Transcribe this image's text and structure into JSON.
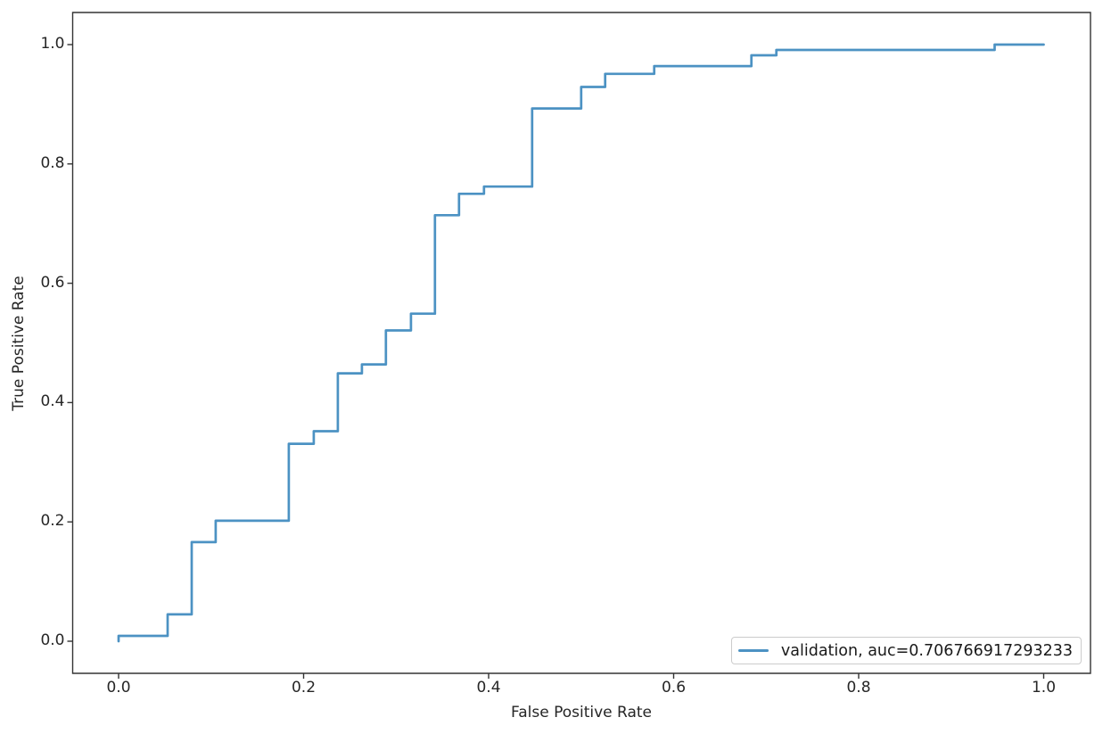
{
  "chart_data": {
    "type": "line",
    "variant": "roc_step_curve",
    "title": "",
    "xlabel": "False Positive Rate",
    "ylabel": "True Positive Rate",
    "xlim": [
      -0.05,
      1.05
    ],
    "ylim": [
      -0.05,
      1.05
    ],
    "grid": false,
    "legend_position": "lower right",
    "x_tick_values": [
      0.0,
      0.2,
      0.4,
      0.6,
      0.8,
      1.0
    ],
    "x_tick_labels": [
      "0.0",
      "0.2",
      "0.4",
      "0.6",
      "0.8",
      "1.0"
    ],
    "y_tick_values": [
      0.0,
      0.2,
      0.4,
      0.6,
      0.8,
      1.0
    ],
    "y_tick_labels": [
      "0.0",
      "0.2",
      "0.4",
      "0.6",
      "0.8",
      "1.0"
    ],
    "series": [
      {
        "name": "validation",
        "auc": 0.706766917293233,
        "legend_label": "validation, auc=0.706766917293233",
        "color": "#4c92c3",
        "draw_style": "steps",
        "step_points": [
          [
            0.0,
            0.0
          ],
          [
            0.0,
            0.009
          ],
          [
            0.053,
            0.009
          ],
          [
            0.053,
            0.045
          ],
          [
            0.079,
            0.045
          ],
          [
            0.079,
            0.166
          ],
          [
            0.105,
            0.166
          ],
          [
            0.105,
            0.202
          ],
          [
            0.184,
            0.202
          ],
          [
            0.184,
            0.331
          ],
          [
            0.211,
            0.331
          ],
          [
            0.211,
            0.352
          ],
          [
            0.237,
            0.352
          ],
          [
            0.237,
            0.449
          ],
          [
            0.263,
            0.449
          ],
          [
            0.263,
            0.464
          ],
          [
            0.289,
            0.464
          ],
          [
            0.289,
            0.521
          ],
          [
            0.316,
            0.521
          ],
          [
            0.316,
            0.549
          ],
          [
            0.342,
            0.549
          ],
          [
            0.342,
            0.714
          ],
          [
            0.368,
            0.714
          ],
          [
            0.368,
            0.75
          ],
          [
            0.395,
            0.75
          ],
          [
            0.395,
            0.762
          ],
          [
            0.447,
            0.762
          ],
          [
            0.447,
            0.893
          ],
          [
            0.5,
            0.893
          ],
          [
            0.5,
            0.929
          ],
          [
            0.526,
            0.929
          ],
          [
            0.526,
            0.951
          ],
          [
            0.579,
            0.951
          ],
          [
            0.579,
            0.964
          ],
          [
            0.684,
            0.964
          ],
          [
            0.684,
            0.982
          ],
          [
            0.711,
            0.982
          ],
          [
            0.711,
            0.991
          ],
          [
            0.947,
            0.991
          ],
          [
            0.947,
            1.0
          ],
          [
            1.0,
            1.0
          ]
        ]
      }
    ]
  },
  "colors": {
    "line": "#4c92c3",
    "axis": "#333333",
    "text": "#262626",
    "legend_border": "#cccccc",
    "background": "#ffffff"
  }
}
